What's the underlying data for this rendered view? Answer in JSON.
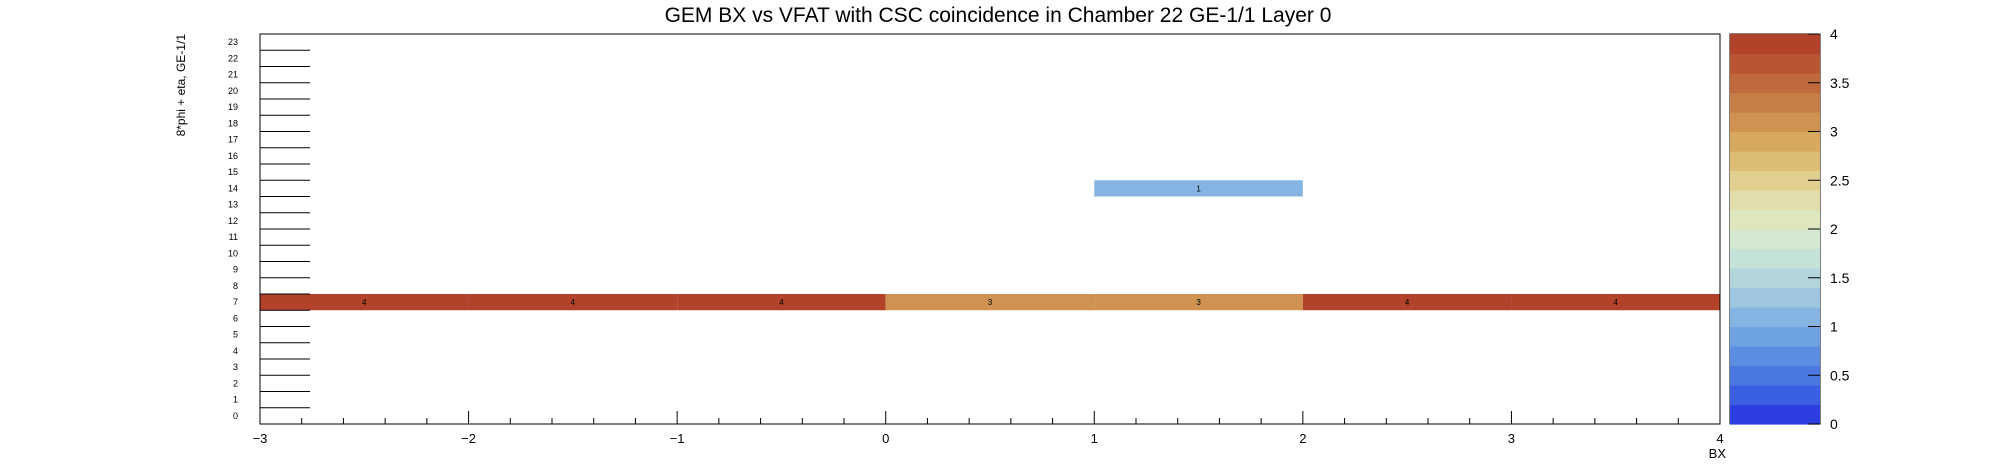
{
  "chart_data": {
    "type": "heatmap",
    "title": "GEM BX vs VFAT with CSC coincidence in Chamber 22 GE-1/1 Layer 0",
    "xlabel": "BX",
    "ylabel": "8*phi + eta, GE-1/1",
    "xlim": [
      -3,
      4
    ],
    "ylim": [
      -0.5,
      23.5
    ],
    "x_ticks": [
      "−3",
      "−2",
      "−1",
      "0",
      "1",
      "2",
      "3",
      "4"
    ],
    "y_ticks": [
      "0",
      "1",
      "2",
      "3",
      "4",
      "5",
      "6",
      "7",
      "8",
      "9",
      "10",
      "11",
      "12",
      "13",
      "14",
      "15",
      "16",
      "17",
      "18",
      "19",
      "20",
      "21",
      "22",
      "23"
    ],
    "zlim": [
      0,
      4
    ],
    "colorbar_ticks": [
      "0",
      "0.5",
      "1",
      "1.5",
      "2",
      "2.5",
      "3",
      "3.5",
      "4"
    ],
    "cells": [
      {
        "x0": -3,
        "x1": -2,
        "y": 7,
        "value": 4,
        "label": "4"
      },
      {
        "x0": -2,
        "x1": -1,
        "y": 7,
        "value": 4,
        "label": "4"
      },
      {
        "x0": -1,
        "x1": 0,
        "y": 7,
        "value": 4,
        "label": "4"
      },
      {
        "x0": 0,
        "x1": 1,
        "y": 7,
        "value": 3,
        "label": "3"
      },
      {
        "x0": 1,
        "x1": 2,
        "y": 7,
        "value": 3,
        "label": "3"
      },
      {
        "x0": 2,
        "x1": 3,
        "y": 7,
        "value": 4,
        "label": "4"
      },
      {
        "x0": 3,
        "x1": 4,
        "y": 7,
        "value": 4,
        "label": "4"
      },
      {
        "x0": 1,
        "x1": 2,
        "y": 14,
        "value": 1,
        "label": "1"
      }
    ],
    "palette": [
      "#2c3ee0",
      "#3b5fe2",
      "#4a78e0",
      "#5b8ee0",
      "#6ea2e2",
      "#85b4e2",
      "#9fc6e0",
      "#b3d6dc",
      "#c5e2d8",
      "#d4e8cf",
      "#dde6bd",
      "#e2ddaa",
      "#e0cf8e",
      "#dcbd73",
      "#d6a95e",
      "#cf9250",
      "#c77d46",
      "#c0693c",
      "#b95533",
      "#b2422a"
    ],
    "grid": false,
    "legend": "none"
  }
}
